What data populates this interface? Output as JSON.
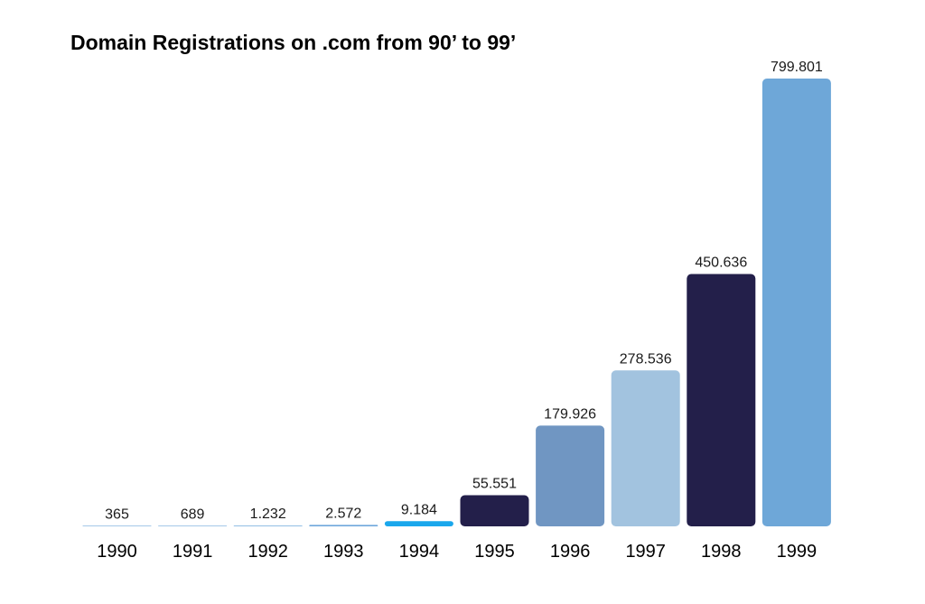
{
  "chart_data": {
    "type": "bar",
    "title": "Domain Registrations on .com from 90’ to 99’",
    "xlabel": "",
    "ylabel": "",
    "ylim": [
      0,
      799801
    ],
    "grid": false,
    "legend": "none",
    "categories": [
      "1990",
      "1991",
      "1992",
      "1993",
      "1994",
      "1995",
      "1996",
      "1997",
      "1998",
      "1999"
    ],
    "values": [
      365,
      689,
      1232,
      2572,
      9184,
      55551,
      179926,
      278536,
      450636,
      799801
    ],
    "value_labels": [
      "365",
      "689",
      "1.232",
      "2.572",
      "9.184",
      "55.551",
      "179.926",
      "278.536",
      "450.636",
      "799.801"
    ],
    "bar_colors": [
      "#6fa8dc",
      "#6fa8dc",
      "#6fa8dc",
      "#6fa8dc",
      "#1aa7ec",
      "#231f4a",
      "#7096c2",
      "#a2c3df",
      "#231f4a",
      "#6ea7d8"
    ]
  }
}
